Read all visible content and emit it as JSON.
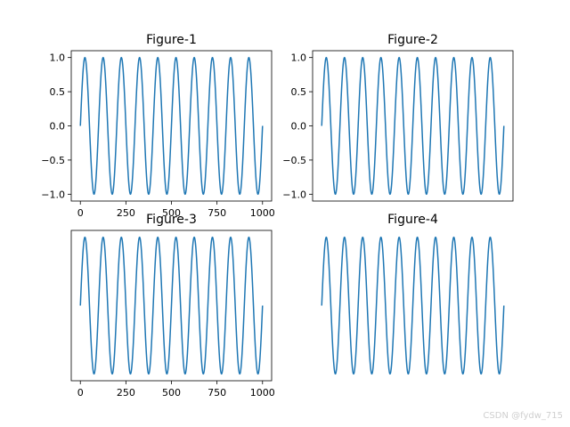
{
  "watermark": "CSDN @fydw_715",
  "colors": {
    "line": "#1f77b4",
    "axes": "#000000",
    "background": "#ffffff"
  },
  "chart_data": [
    {
      "type": "line",
      "title": "Figure-1",
      "xlim": [
        -50,
        1050
      ],
      "ylim": [
        -1.1,
        1.1
      ],
      "xticks": [
        0,
        250,
        500,
        750,
        1000
      ],
      "xtick_labels": [
        "0",
        "250",
        "500",
        "750",
        "1000"
      ],
      "yticks": [
        -1.0,
        -0.5,
        0.0,
        0.5,
        1.0
      ],
      "ytick_labels": [
        "−1.0",
        "−0.5",
        "0.0",
        "0.5",
        "1.0"
      ],
      "frame": "all",
      "series": [
        {
          "function": "sin",
          "x_range": [
            0,
            1000
          ],
          "period": 100,
          "amplitude": 1
        }
      ]
    },
    {
      "type": "line",
      "title": "Figure-2",
      "xlim": [
        -50,
        1050
      ],
      "ylim": [
        -1.1,
        1.1
      ],
      "xticks": [],
      "xtick_labels": [],
      "yticks": [
        -1.0,
        -0.5,
        0.0,
        0.5,
        1.0
      ],
      "ytick_labels": [
        "−1.0",
        "−0.5",
        "0.0",
        "0.5",
        "1.0"
      ],
      "frame": "all",
      "series": [
        {
          "function": "sin",
          "x_range": [
            0,
            1000
          ],
          "period": 100,
          "amplitude": 1
        }
      ]
    },
    {
      "type": "line",
      "title": "Figure-3",
      "xlim": [
        -50,
        1050
      ],
      "ylim": [
        -1.1,
        1.1
      ],
      "xticks": [
        0,
        250,
        500,
        750,
        1000
      ],
      "xtick_labels": [
        "0",
        "250",
        "500",
        "750",
        "1000"
      ],
      "yticks": [],
      "ytick_labels": [],
      "frame": "all",
      "series": [
        {
          "function": "sin",
          "x_range": [
            0,
            1000
          ],
          "period": 100,
          "amplitude": 1
        }
      ]
    },
    {
      "type": "line",
      "title": "Figure-4",
      "xlim": [
        -50,
        1050
      ],
      "ylim": [
        -1.1,
        1.1
      ],
      "xticks": [],
      "xtick_labels": [],
      "yticks": [],
      "ytick_labels": [],
      "frame": "none",
      "series": [
        {
          "function": "sin",
          "x_range": [
            0,
            1000
          ],
          "period": 100,
          "amplitude": 1
        }
      ]
    }
  ]
}
